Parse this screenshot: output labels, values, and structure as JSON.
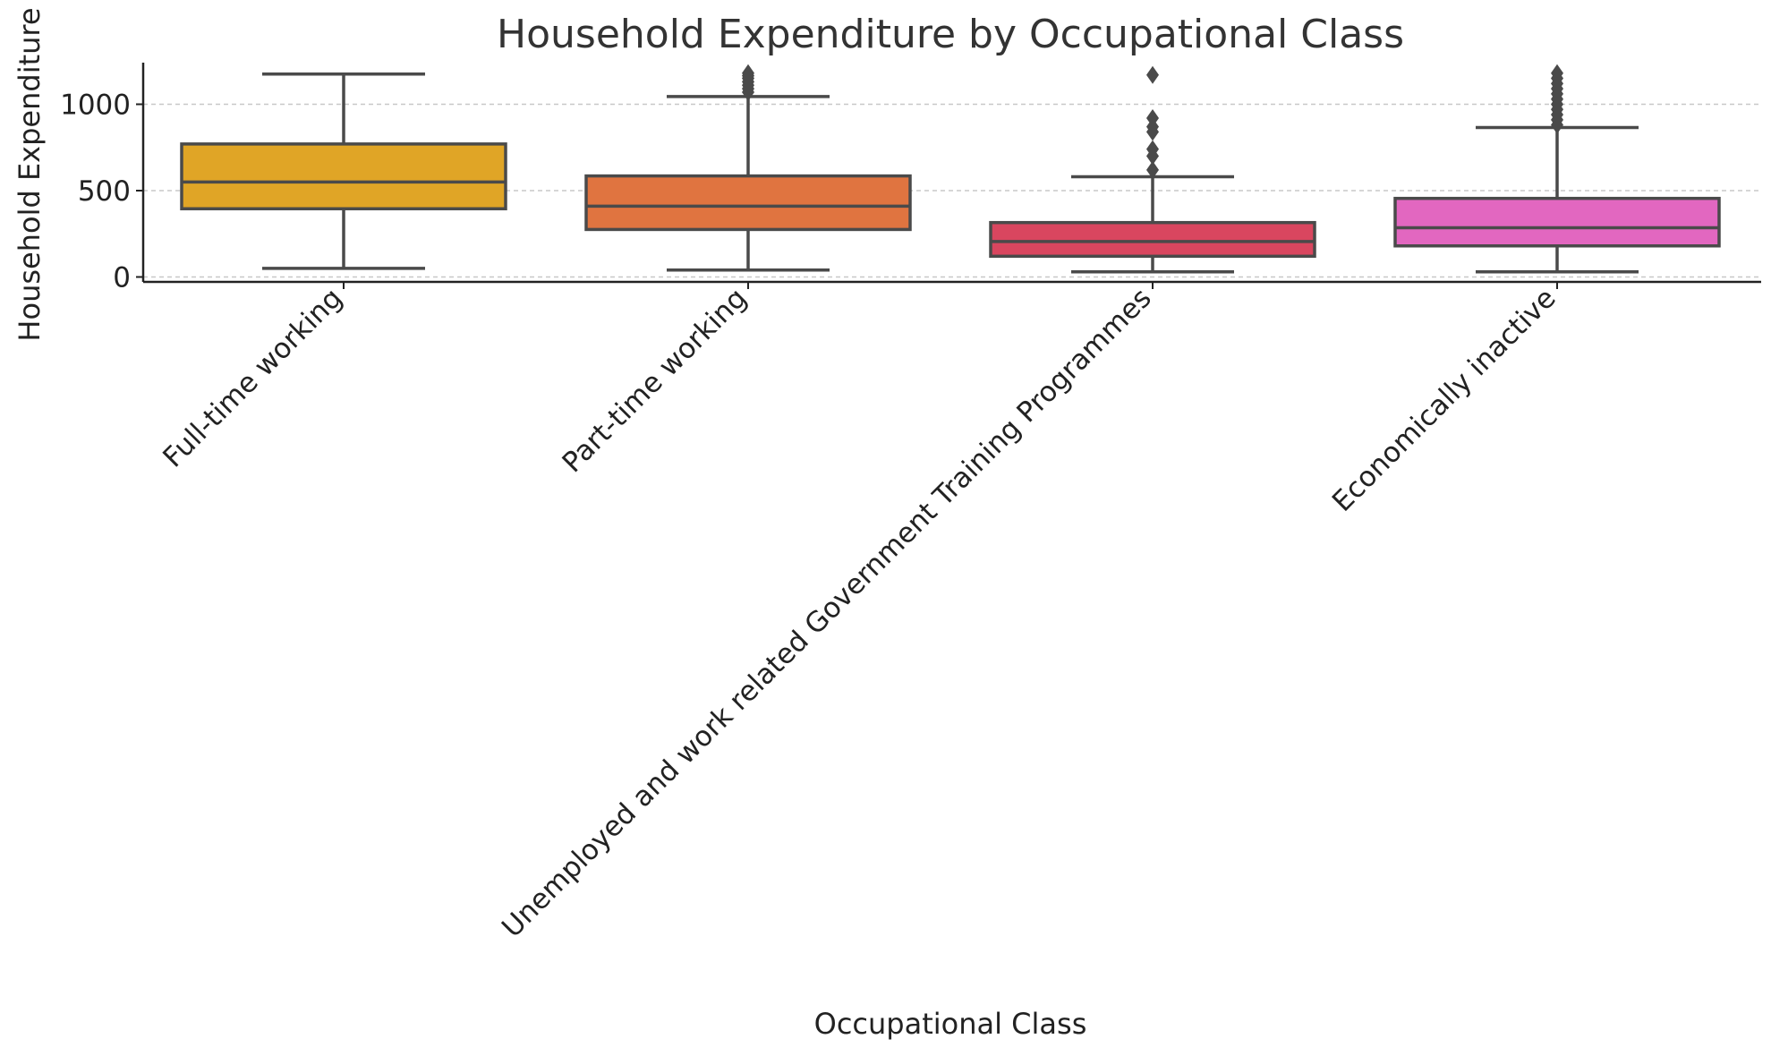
{
  "chart_data": {
    "type": "box",
    "title": "Household Expenditure by Occupational Class",
    "xlabel": "Occupational Class",
    "ylabel": "Household Expenditure",
    "ylim": [
      -20,
      1230
    ],
    "yticks": [
      0,
      500,
      1000
    ],
    "grid": "y-dashed",
    "legend": "none",
    "categories": [
      "Full-time working",
      "Part-time working",
      "Unemployed and work related Government Training Programmes",
      "Economically inactive"
    ],
    "boxes": [
      {
        "category": "Full-time working",
        "color": "#E0A526",
        "whisker_low": 50,
        "q1": 395,
        "median": 550,
        "q3": 770,
        "whisker_high": 1175,
        "outliers": []
      },
      {
        "category": "Part-time working",
        "color": "#E07440",
        "whisker_low": 40,
        "q1": 275,
        "median": 410,
        "q3": 585,
        "whisker_high": 1045,
        "outliers": [
          1070,
          1090,
          1110,
          1130,
          1150,
          1165,
          1180
        ]
      },
      {
        "category": "Unemployed and work related Government Training Programmes",
        "color": "#D9465F",
        "whisker_low": 30,
        "q1": 120,
        "median": 205,
        "q3": 315,
        "whisker_high": 580,
        "outliers": [
          620,
          700,
          740,
          840,
          870,
          920,
          1170
        ]
      },
      {
        "category": "Economically inactive",
        "color": "#E267C0",
        "whisker_low": 30,
        "q1": 180,
        "median": 285,
        "q3": 455,
        "whisker_high": 865,
        "outliers": [
          880,
          910,
          940,
          970,
          1000,
          1030,
          1060,
          1090,
          1120,
          1150,
          1180
        ]
      }
    ],
    "style": {
      "line_color": "#4a4a4a",
      "grid_color": "#c8c8c8",
      "axis_color": "#222222"
    }
  }
}
